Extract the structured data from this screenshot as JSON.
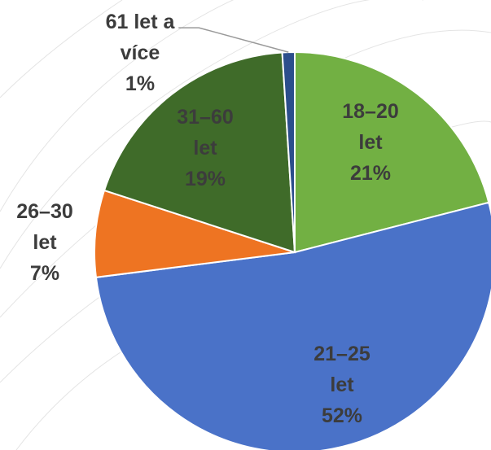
{
  "chart_data": {
    "type": "pie",
    "title": "",
    "slices": [
      {
        "label_lines": [
          "18–20",
          "let",
          "21%"
        ],
        "category": "18–20 let",
        "value": 21,
        "color": "#72B043"
      },
      {
        "label_lines": [
          "21–25",
          "let",
          "52%"
        ],
        "category": "21–25 let",
        "value": 52,
        "color": "#4A72C8"
      },
      {
        "label_lines": [
          "26–30",
          "let",
          "7%"
        ],
        "category": "26–30 let",
        "value": 7,
        "color": "#EE7422"
      },
      {
        "label_lines": [
          "31–60",
          "let",
          "19%"
        ],
        "category": "31–60 let",
        "value": 19,
        "color": "#3F6B29"
      },
      {
        "label_lines": [
          "61 let a",
          "více",
          "1%"
        ],
        "category": "61 let a více",
        "value": 1,
        "color": "#2C4E8C"
      }
    ],
    "label_color_inside": "#3C3C3C",
    "label_color_outside": "#3C3C3C"
  }
}
